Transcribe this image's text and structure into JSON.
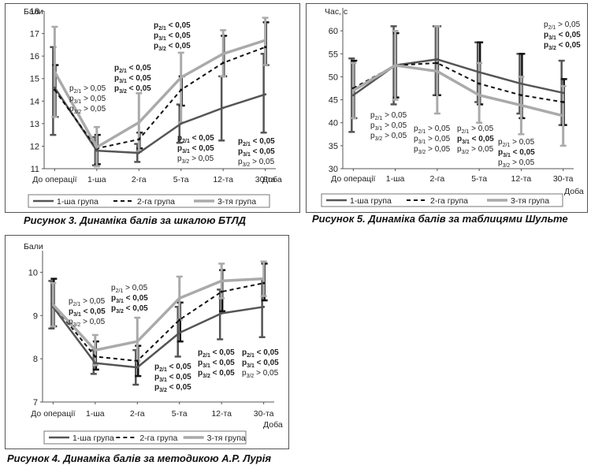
{
  "colors": {
    "g1": "#555555",
    "g2": "#111111",
    "g3": "#aaaaaa",
    "axis": "#555555"
  },
  "chart_data": [
    {
      "id": "fig3",
      "type": "line",
      "caption": "Рисунок 3. Динаміка балів за шкалою БТЛД",
      "ylabel": "Бали",
      "xlabel": "Доба",
      "ylim": [
        11,
        18
      ],
      "yticks": [
        11,
        12,
        13,
        14,
        15,
        16,
        17,
        18
      ],
      "categories": [
        "До операції",
        "1-ша",
        "2-га",
        "5-та",
        "12-та",
        "30-та"
      ],
      "grid": false,
      "legend": "bottom",
      "series": [
        {
          "name": "1-ша група",
          "style": "solid",
          "color": "#555555",
          "values": [
            14.6,
            11.8,
            11.7,
            13.0,
            13.7,
            14.3
          ],
          "err_low": [
            12.5,
            11.15,
            11.3,
            12.15,
            12.25,
            12.6
          ],
          "err_high": [
            16.4,
            12.4,
            12.1,
            13.85,
            15.1,
            16.1
          ]
        },
        {
          "name": "2-га група",
          "style": "dashed",
          "color": "#111111",
          "values": [
            14.5,
            11.9,
            12.3,
            14.5,
            15.7,
            16.4
          ],
          "err_low": [
            13.3,
            11.2,
            11.9,
            13.8,
            15.1,
            15.6
          ],
          "err_high": [
            15.6,
            12.5,
            12.6,
            15.1,
            16.9,
            17.5
          ]
        },
        {
          "name": "3-тя група",
          "style": "solid",
          "color": "#aaaaaa",
          "values": [
            15.3,
            11.95,
            13.05,
            15.05,
            16.1,
            16.7
          ],
          "err_low": [
            13.3,
            11.1,
            11.75,
            13.05,
            15.1,
            15.6
          ],
          "err_high": [
            17.3,
            12.85,
            14.35,
            16.15,
            17.15,
            17.7
          ]
        }
      ],
      "annotations": [
        {
          "lines": [
            "p2/1 > 0,05",
            "p3/1 > 0,05",
            "p3/2 > 0,05"
          ],
          "bold": [
            false,
            false,
            false
          ]
        },
        {
          "lines": [
            "p2/1 < 0,05",
            "p3/1 < 0,05",
            "p3/2 < 0,05"
          ],
          "bold": [
            true,
            true,
            true
          ]
        },
        {
          "lines": [
            "p2/1 < 0,05",
            "p3/1 < 0,05",
            "p3/2 < 0,05"
          ],
          "bold": [
            true,
            true,
            true
          ]
        },
        {
          "lines": [
            "p2/1 < 0,05",
            "p3/1 < 0,05",
            "p3/2 > 0,05"
          ],
          "bold": [
            true,
            true,
            false
          ]
        },
        {
          "lines": [
            "p2/1 < 0,05",
            "p3/1 < 0,05",
            "p3/2 > 0,05"
          ],
          "bold": [
            true,
            true,
            false
          ]
        }
      ]
    },
    {
      "id": "fig5",
      "type": "line",
      "caption": "Рисунок 5. Динаміка балів за таблицями Шульте",
      "ylabel": "Час, с",
      "xlabel": "Доба",
      "ylim": [
        30,
        65
      ],
      "yticks": [
        30,
        35,
        40,
        45,
        50,
        55,
        60
      ],
      "categories": [
        "До операції",
        "1-ша",
        "2-га",
        "5-та",
        "12-та",
        "30-та"
      ],
      "grid": false,
      "legend": "bottom",
      "series": [
        {
          "name": "1-ша група",
          "style": "solid",
          "color": "#555555",
          "values": [
            46,
            52.5,
            53.8,
            51,
            48.5,
            46.5
          ],
          "err_low": [
            38,
            44,
            46,
            44.5,
            42,
            39.5
          ],
          "err_high": [
            54,
            61,
            61,
            57.5,
            55,
            53.5
          ]
        },
        {
          "name": "2-га група",
          "style": "dashed",
          "color": "#111111",
          "values": [
            47.5,
            52.5,
            53,
            48.5,
            46,
            44.5
          ],
          "err_low": [
            41,
            45.5,
            46,
            44,
            41,
            39.5
          ],
          "err_high": [
            53.5,
            59.5,
            61,
            57.5,
            55,
            49.5
          ]
        },
        {
          "name": "3-тя група",
          "style": "solid",
          "color": "#aaaaaa",
          "values": [
            47,
            52.5,
            51.2,
            46,
            43.8,
            41.5
          ],
          "err_low": [
            41,
            45,
            42,
            40,
            37.5,
            35
          ],
          "err_high": [
            53,
            60,
            61,
            53,
            50,
            48
          ]
        }
      ],
      "annotations": [
        {
          "lines": [
            "p2/1 > 0,05",
            "p3/1 > 0,05",
            "p3/2 > 0,05"
          ],
          "bold": [
            false,
            false,
            false
          ]
        },
        {
          "lines": [
            "p2/1 > 0,05",
            "p3/1 > 0,05",
            "p3/2 > 0,05"
          ],
          "bold": [
            false,
            false,
            false
          ]
        },
        {
          "lines": [
            "p2/1 > 0,05",
            "p3/1 < 0,05",
            "p3/2 > 0,05"
          ],
          "bold": [
            false,
            true,
            false
          ]
        },
        {
          "lines": [
            "p2/1 > 0,05",
            "p3/1 < 0,05",
            "p3/2 > 0,05"
          ],
          "bold": [
            false,
            true,
            false
          ]
        },
        {
          "lines": [
            "p2/1 > 0,05",
            "p3/1 < 0,05",
            "p3/2 < 0,05"
          ],
          "bold": [
            false,
            true,
            true
          ]
        }
      ]
    },
    {
      "id": "fig4",
      "type": "line",
      "caption": "Рисунок 4. Динаміка балів за методикою А.Р. Лурія",
      "ylabel": "Бали",
      "xlabel": "Доба",
      "ylim": [
        7,
        10.5
      ],
      "yticks": [
        7,
        8,
        9,
        10
      ],
      "categories": [
        "До операції",
        "1-ша",
        "2-га",
        "5-та",
        "12-та",
        "30-та"
      ],
      "grid": false,
      "legend": "bottom",
      "series": [
        {
          "name": "1-ша група",
          "style": "solid",
          "color": "#555555",
          "values": [
            9.2,
            7.9,
            7.8,
            8.6,
            9.05,
            9.2
          ],
          "err_low": [
            8.7,
            7.65,
            7.4,
            8.05,
            8.45,
            8.5
          ],
          "err_high": [
            9.8,
            8.2,
            8.2,
            9.2,
            9.6,
            9.85
          ]
        },
        {
          "name": "2-га група",
          "style": "dashed",
          "color": "#111111",
          "values": [
            9.25,
            8.05,
            7.95,
            8.9,
            9.55,
            9.75
          ],
          "err_low": [
            8.75,
            7.75,
            7.6,
            8.4,
            9.1,
            9.35
          ],
          "err_high": [
            9.85,
            8.4,
            8.3,
            9.3,
            10.05,
            10.2
          ]
        },
        {
          "name": "3-тя група",
          "style": "solid",
          "color": "#aaaaaa",
          "values": [
            9.25,
            8.2,
            8.4,
            9.4,
            9.8,
            9.85
          ],
          "err_low": [
            8.75,
            7.85,
            7.95,
            8.9,
            9.4,
            9.45
          ],
          "err_high": [
            9.75,
            8.55,
            8.95,
            9.9,
            10.2,
            10.25
          ]
        }
      ],
      "annotations": [
        {
          "lines": [
            "p2/1 > 0,05",
            "p3/1 < 0,05",
            "p3/2 > 0,05"
          ],
          "bold": [
            false,
            true,
            false
          ]
        },
        {
          "lines": [
            "p2/1 > 0,05",
            "p3/1 < 0,05",
            "p3/2 < 0,05"
          ],
          "bold": [
            false,
            true,
            true
          ]
        },
        {
          "lines": [
            "p2/1 < 0,05",
            "p3/1 < 0,05",
            "p3/2 < 0,05"
          ],
          "bold": [
            true,
            true,
            true
          ]
        },
        {
          "lines": [
            "p2/1 < 0,05",
            "p3/1 < 0,05",
            "p3/2 < 0,05"
          ],
          "bold": [
            true,
            true,
            true
          ]
        },
        {
          "lines": [
            "p2/1 < 0,05",
            "p3/1 < 0,05",
            "p3/2 > 0,05"
          ],
          "bold": [
            true,
            true,
            false
          ]
        }
      ]
    }
  ]
}
